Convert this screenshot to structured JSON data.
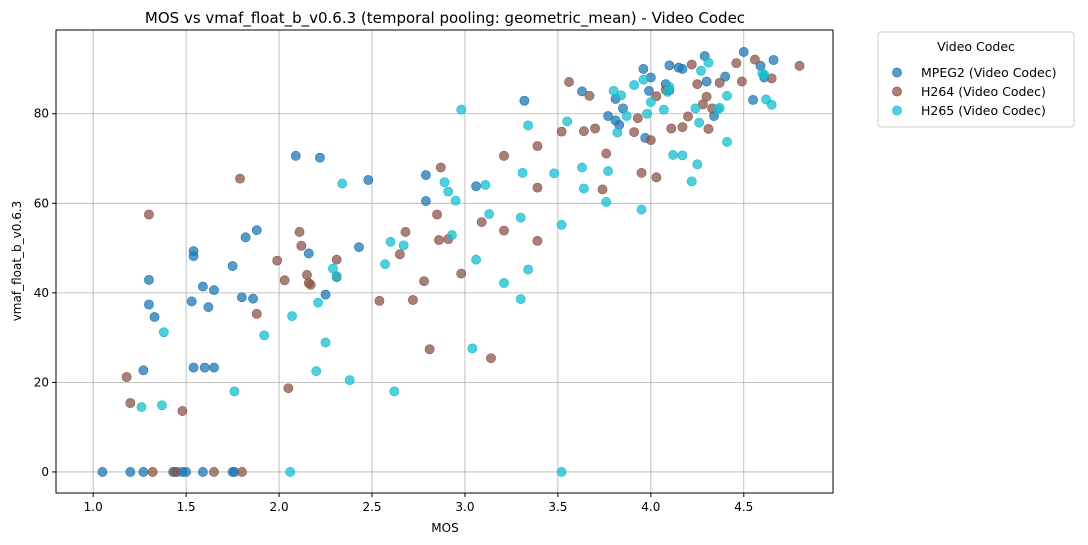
{
  "chart_data": {
    "type": "scatter",
    "title": "MOS vs vmaf_float_b_v0.6.3 (temporal pooling: geometric_mean) - Video Codec",
    "xlabel": "MOS",
    "ylabel": "vmaf_float_b_v0.6.3",
    "xlim": [
      0.8,
      4.98
    ],
    "ylim": [
      -4.7,
      98.7
    ],
    "xticks": [
      1.0,
      1.5,
      2.0,
      2.5,
      3.0,
      3.5,
      4.0,
      4.5
    ],
    "xtick_labels": [
      "1.0",
      "1.5",
      "2.0",
      "2.5",
      "3.0",
      "3.5",
      "4.0",
      "4.5"
    ],
    "yticks": [
      0,
      20,
      40,
      60,
      80
    ],
    "ytick_labels": [
      "0",
      "20",
      "40",
      "60",
      "80"
    ],
    "grid": true,
    "legend": {
      "title": "Video Codec",
      "placement": "outside-top-right"
    },
    "series": [
      {
        "name": "MPEG2 (Video Codec)",
        "color": "#1f77b4",
        "points": [
          [
            1.05,
            0
          ],
          [
            1.2,
            0
          ],
          [
            1.27,
            0
          ],
          [
            1.43,
            0
          ],
          [
            1.45,
            0
          ],
          [
            1.48,
            0
          ],
          [
            1.5,
            0
          ],
          [
            1.59,
            0
          ],
          [
            1.75,
            0
          ],
          [
            1.76,
            0
          ],
          [
            1.27,
            22.7
          ],
          [
            1.54,
            23.3
          ],
          [
            1.6,
            23.3
          ],
          [
            1.65,
            23.3
          ],
          [
            1.3,
            37.4
          ],
          [
            1.33,
            34.6
          ],
          [
            1.3,
            42.9
          ],
          [
            1.53,
            38.1
          ],
          [
            1.59,
            41.4
          ],
          [
            1.62,
            36.8
          ],
          [
            1.65,
            40.6
          ],
          [
            1.54,
            48.2
          ],
          [
            1.54,
            49.3
          ],
          [
            1.75,
            46
          ],
          [
            1.8,
            39
          ],
          [
            1.86,
            38.7
          ],
          [
            1.82,
            52.4
          ],
          [
            1.88,
            54
          ],
          [
            2.09,
            70.6
          ],
          [
            2.22,
            70.2
          ],
          [
            2.16,
            48.8
          ],
          [
            2.25,
            39.6
          ],
          [
            2.43,
            50.2
          ],
          [
            2.48,
            65.2
          ],
          [
            2.79,
            66.3
          ],
          [
            2.79,
            60.5
          ],
          [
            3.06,
            63.8
          ],
          [
            3.32,
            82.9
          ],
          [
            3.63,
            85
          ],
          [
            3.77,
            79.5
          ],
          [
            3.81,
            78.5
          ],
          [
            3.81,
            83.3
          ],
          [
            3.83,
            77.5
          ],
          [
            3.85,
            81.2
          ],
          [
            3.96,
            90
          ],
          [
            3.97,
            74.6
          ],
          [
            3.99,
            85.1
          ],
          [
            4.0,
            88.1
          ],
          [
            4.08,
            86.6
          ],
          [
            4.1,
            85.2
          ],
          [
            4.1,
            90.8
          ],
          [
            4.15,
            90.3
          ],
          [
            4.17,
            90
          ],
          [
            4.29,
            92.9
          ],
          [
            4.3,
            87.2
          ],
          [
            4.34,
            79.5
          ],
          [
            4.4,
            88.3
          ],
          [
            4.5,
            93.8
          ],
          [
            4.55,
            83.1
          ],
          [
            4.59,
            90.7
          ],
          [
            4.61,
            88.1
          ],
          [
            4.66,
            92
          ]
        ]
      },
      {
        "name": "H264 (Video Codec)",
        "color": "#8c564b",
        "points": [
          [
            1.18,
            21.2
          ],
          [
            1.2,
            15.4
          ],
          [
            1.3,
            57.5
          ],
          [
            1.32,
            0
          ],
          [
            1.44,
            0
          ],
          [
            1.48,
            13.6
          ],
          [
            1.65,
            0
          ],
          [
            1.8,
            0
          ],
          [
            1.79,
            65.5
          ],
          [
            1.88,
            35.3
          ],
          [
            1.99,
            47.2
          ],
          [
            2.03,
            42.8
          ],
          [
            2.05,
            18.7
          ],
          [
            2.11,
            53.6
          ],
          [
            2.12,
            50.5
          ],
          [
            2.15,
            44
          ],
          [
            2.16,
            42.2
          ],
          [
            2.17,
            41.8
          ],
          [
            2.31,
            47.4
          ],
          [
            2.31,
            43.5
          ],
          [
            2.54,
            38.2
          ],
          [
            2.65,
            48.6
          ],
          [
            2.68,
            53.6
          ],
          [
            2.72,
            38.4
          ],
          [
            2.78,
            42.6
          ],
          [
            2.81,
            27.4
          ],
          [
            2.85,
            57.5
          ],
          [
            2.86,
            51.8
          ],
          [
            2.87,
            68
          ],
          [
            2.91,
            52
          ],
          [
            2.98,
            44.3
          ],
          [
            3.09,
            55.8
          ],
          [
            3.14,
            25.4
          ],
          [
            3.21,
            53.9
          ],
          [
            3.21,
            70.6
          ],
          [
            3.39,
            63.5
          ],
          [
            3.39,
            51.6
          ],
          [
            3.39,
            72.8
          ],
          [
            3.52,
            76
          ],
          [
            3.56,
            87.1
          ],
          [
            3.64,
            76.1
          ],
          [
            3.67,
            84
          ],
          [
            3.7,
            76.7
          ],
          [
            3.74,
            63.1
          ],
          [
            3.76,
            71.1
          ],
          [
            3.91,
            75.9
          ],
          [
            3.93,
            79
          ],
          [
            3.95,
            66.8
          ],
          [
            4.0,
            74.1
          ],
          [
            4.03,
            83.9
          ],
          [
            4.03,
            65.8
          ],
          [
            4.08,
            85.3
          ],
          [
            4.11,
            76.7
          ],
          [
            4.17,
            77
          ],
          [
            4.2,
            79.4
          ],
          [
            4.22,
            91
          ],
          [
            4.25,
            86.6
          ],
          [
            4.28,
            82.1
          ],
          [
            4.3,
            83.8
          ],
          [
            4.31,
            76.6
          ],
          [
            4.33,
            81.2
          ],
          [
            4.37,
            86.9
          ],
          [
            4.46,
            91.3
          ],
          [
            4.49,
            87.2
          ],
          [
            4.56,
            92.1
          ],
          [
            4.65,
            87.9
          ],
          [
            4.8,
            90.7
          ]
        ]
      },
      {
        "name": "H265 (Video Codec)",
        "color": "#17becf",
        "points": [
          [
            1.26,
            14.5
          ],
          [
            1.37,
            14.9
          ],
          [
            1.38,
            31.2
          ],
          [
            1.76,
            18
          ],
          [
            1.92,
            30.5
          ],
          [
            2.06,
            0
          ],
          [
            2.07,
            34.8
          ],
          [
            2.2,
            22.5
          ],
          [
            2.21,
            37.8
          ],
          [
            2.25,
            28.9
          ],
          [
            2.29,
            45.4
          ],
          [
            2.31,
            43.7
          ],
          [
            2.34,
            64.4
          ],
          [
            2.38,
            20.5
          ],
          [
            2.57,
            46.4
          ],
          [
            2.6,
            51.4
          ],
          [
            2.62,
            18
          ],
          [
            2.67,
            50.6
          ],
          [
            2.89,
            64.7
          ],
          [
            2.91,
            62.6
          ],
          [
            2.93,
            52.9
          ],
          [
            2.95,
            60.6
          ],
          [
            2.98,
            80.9
          ],
          [
            3.04,
            27.6
          ],
          [
            3.06,
            47.4
          ],
          [
            3.11,
            64.1
          ],
          [
            3.13,
            57.6
          ],
          [
            3.21,
            42.2
          ],
          [
            3.3,
            56.8
          ],
          [
            3.3,
            38.6
          ],
          [
            3.31,
            66.8
          ],
          [
            3.34,
            45.2
          ],
          [
            3.34,
            77.4
          ],
          [
            3.48,
            66.7
          ],
          [
            3.52,
            55.2
          ],
          [
            3.52,
            0
          ],
          [
            3.55,
            78.3
          ],
          [
            3.63,
            68
          ],
          [
            3.64,
            63.3
          ],
          [
            3.76,
            60.3
          ],
          [
            3.77,
            67.2
          ],
          [
            3.8,
            85.1
          ],
          [
            3.82,
            75.8
          ],
          [
            3.84,
            84.1
          ],
          [
            3.87,
            79.5
          ],
          [
            3.91,
            86.4
          ],
          [
            3.95,
            58.6
          ],
          [
            3.96,
            87.6
          ],
          [
            3.98,
            80
          ],
          [
            4.0,
            82.6
          ],
          [
            4.07,
            80.9
          ],
          [
            4.09,
            84.9
          ],
          [
            4.1,
            86
          ],
          [
            4.12,
            70.8
          ],
          [
            4.17,
            70.7
          ],
          [
            4.22,
            64.9
          ],
          [
            4.24,
            81.2
          ],
          [
            4.25,
            68.7
          ],
          [
            4.26,
            78
          ],
          [
            4.27,
            89.6
          ],
          [
            4.31,
            91.4
          ],
          [
            4.36,
            81
          ],
          [
            4.37,
            81.3
          ],
          [
            4.41,
            84
          ],
          [
            4.41,
            73.7
          ],
          [
            4.61,
            88.7
          ],
          [
            4.62,
            83.2
          ],
          [
            4.6,
            89
          ],
          [
            4.65,
            82
          ]
        ]
      }
    ]
  }
}
